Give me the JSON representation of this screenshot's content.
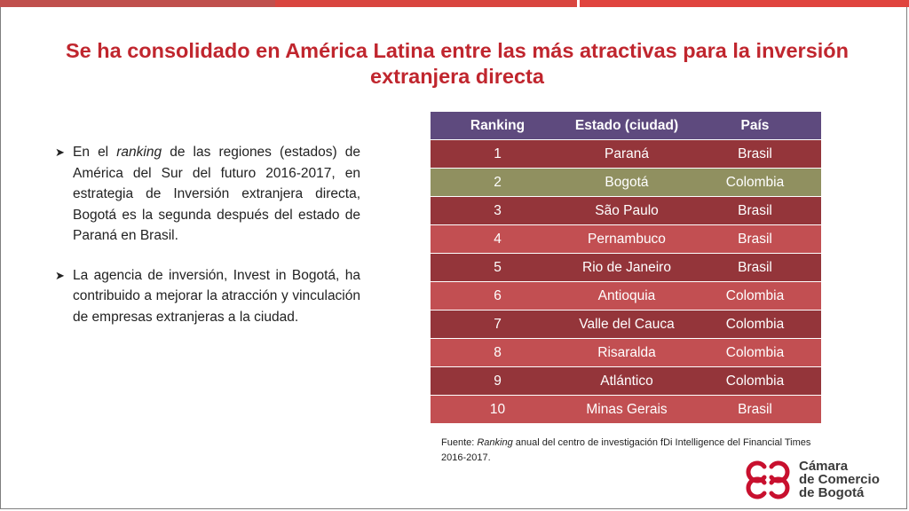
{
  "title": "Se ha consolidado en América Latina entre las más atractivas para la inversión extranjera directa",
  "bullets": [
    {
      "before": "En el ",
      "em": "ranking",
      "after": " de las regiones (estados) de América del Sur del futuro 2016-2017, en estrategia de Inversión extranjera directa, Bogotá es la segunda después del estado de Paraná en Brasil."
    },
    {
      "text": "La agencia de inversión, Invest in Bogotá, ha contribuido a mejorar la atracción y vinculación de empresas extranjeras a la ciudad."
    }
  ],
  "table": {
    "headers": [
      "Ranking",
      "Estado (ciudad)",
      "País"
    ],
    "rows": [
      [
        "1",
        "Paraná",
        "Brasil"
      ],
      [
        "2",
        "Bogotá",
        "Colombia"
      ],
      [
        "3",
        "São Paulo",
        "Brasil"
      ],
      [
        "4",
        "Pernambuco",
        "Brasil"
      ],
      [
        "5",
        "Rio de Janeiro",
        "Brasil"
      ],
      [
        "6",
        "Antioquia",
        "Colombia"
      ],
      [
        "7",
        "Valle del Cauca",
        "Colombia"
      ],
      [
        "8",
        "Risaralda",
        "Colombia"
      ],
      [
        "9",
        "Atlántico",
        "Colombia"
      ],
      [
        "10",
        "Minas Gerais",
        "Brasil"
      ]
    ],
    "header_color": "#5e4a7e",
    "row_dark": "#94353a",
    "row_light": "#c24f52",
    "highlight_color": "#909060"
  },
  "source": {
    "before": "Fuente: ",
    "em": "Ranking",
    "after": " anual del centro de investigación fDi Intelligence del Financial Times 2016-2017."
  },
  "logo": {
    "line1": "Cámara",
    "line2": "de Comercio",
    "line3": "de Bogotá",
    "icon": "ccb-logo-icon",
    "color": "#c8102e"
  },
  "accent_color": "#c0262e"
}
